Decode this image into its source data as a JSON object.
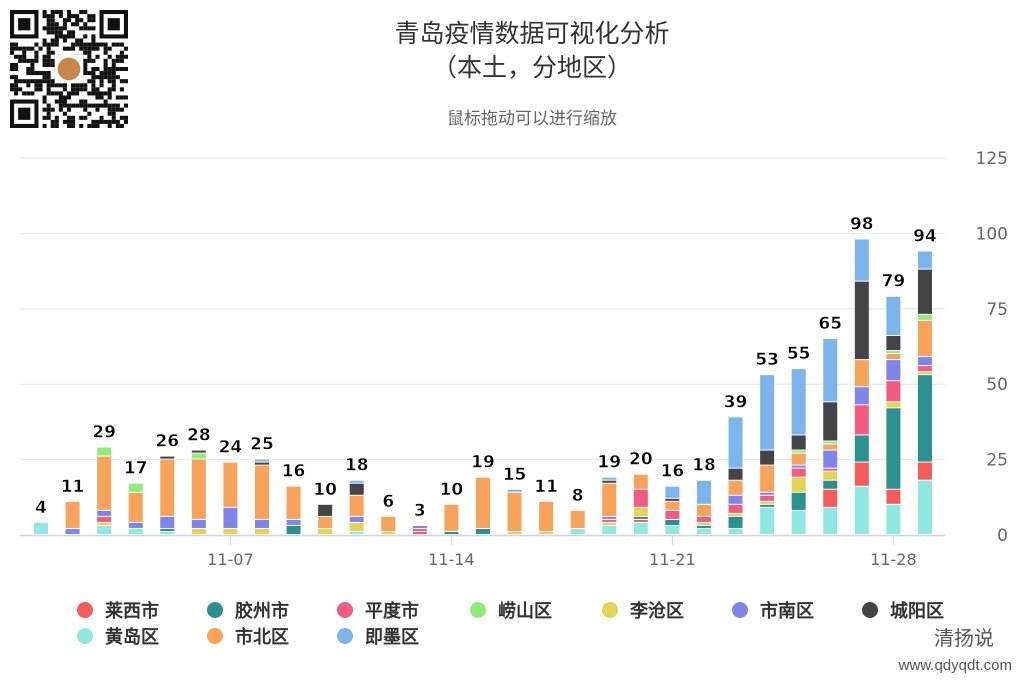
{
  "header": {
    "title_line1": "青岛疫情数据可视化分析",
    "title_line2": "（本土，分地区）",
    "subtitle": "鼠标拖动可以进行缩放"
  },
  "watermark": {
    "name": "清扬说",
    "url": "www.qdyqdt.com"
  },
  "qr_code": {
    "icon": "qr-code-icon"
  },
  "chart_data": {
    "type": "bar",
    "stacked": true,
    "categories": [
      "11-01",
      "11-02",
      "11-03",
      "11-04",
      "11-05",
      "11-06",
      "11-07",
      "11-08",
      "11-09",
      "11-10",
      "11-11",
      "11-12",
      "11-13",
      "11-14",
      "11-15",
      "11-16",
      "11-17",
      "11-18",
      "11-19",
      "11-20",
      "11-21",
      "11-22",
      "11-23",
      "11-24",
      "11-25",
      "11-26",
      "11-27",
      "11-28",
      "11-29"
    ],
    "x_tick_labels": [
      "11-07",
      "11-14",
      "11-21",
      "11-28"
    ],
    "y_ticks": [
      0,
      25,
      50,
      75,
      100,
      125
    ],
    "ylim": [
      0,
      125
    ],
    "y_axis_side": "right",
    "grid": true,
    "legend_position": "bottom",
    "totals": [
      4,
      11,
      29,
      17,
      26,
      28,
      24,
      25,
      16,
      10,
      18,
      6,
      3,
      10,
      19,
      15,
      11,
      8,
      19,
      20,
      16,
      18,
      39,
      53,
      55,
      65,
      98,
      79,
      94
    ],
    "series": [
      {
        "name": "黄岛区",
        "color": "#91e8e1",
        "values": [
          4,
          0,
          3,
          2,
          1,
          0,
          0,
          0,
          0,
          0,
          1,
          0,
          0,
          0,
          0,
          0,
          0,
          2,
          3,
          4,
          3,
          2,
          2,
          9,
          8,
          9,
          16,
          10,
          18
        ]
      },
      {
        "name": "莱西市",
        "color": "#f45b5b",
        "values": [
          0,
          0,
          0,
          0,
          0,
          0,
          0,
          0,
          0,
          0,
          0,
          0,
          1,
          0,
          0,
          0,
          0,
          0,
          0,
          1,
          0,
          0,
          0,
          0,
          0,
          6,
          8,
          5,
          6
        ]
      },
      {
        "name": "胶州市",
        "color": "#2b908f",
        "values": [
          0,
          0,
          0,
          0,
          1,
          0,
          0,
          0,
          3,
          0,
          0,
          0,
          0,
          1,
          2,
          0,
          0,
          0,
          0,
          1,
          2,
          1,
          4,
          1,
          6,
          3,
          9,
          27,
          29
        ]
      },
      {
        "name": "李沧区",
        "color": "#e4d354",
        "values": [
          0,
          0,
          1,
          0,
          0,
          2,
          2,
          2,
          0,
          2,
          3,
          1,
          0,
          0,
          0,
          1,
          1,
          0,
          1,
          3,
          0,
          1,
          1,
          1,
          5,
          3,
          0,
          2,
          1
        ]
      },
      {
        "name": "平度市",
        "color": "#f15c80",
        "values": [
          0,
          0,
          2,
          0,
          0,
          0,
          0,
          0,
          0,
          0,
          0,
          0,
          1,
          0,
          0,
          0,
          0,
          0,
          1,
          6,
          3,
          2,
          3,
          2,
          3,
          1,
          10,
          7,
          2
        ]
      },
      {
        "name": "市南区",
        "color": "#8085e9",
        "values": [
          0,
          2,
          2,
          2,
          4,
          3,
          7,
          3,
          2,
          0,
          2,
          0,
          1,
          0,
          0,
          0,
          0,
          0,
          1,
          0,
          0,
          0,
          3,
          1,
          1,
          6,
          6,
          7,
          3
        ]
      },
      {
        "name": "市北区",
        "color": "#f7a35c",
        "values": [
          0,
          9,
          18,
          10,
          19,
          20,
          15,
          18,
          11,
          4,
          7,
          5,
          0,
          9,
          17,
          13,
          10,
          6,
          11,
          5,
          3,
          4,
          5,
          9,
          4,
          2,
          9,
          2,
          12
        ]
      },
      {
        "name": "崂山区",
        "color": "#90ed7d",
        "values": [
          0,
          0,
          3,
          3,
          0,
          2,
          0,
          0,
          0,
          0,
          0,
          0,
          0,
          0,
          0,
          0,
          0,
          0,
          0,
          0,
          0,
          0,
          0,
          0,
          1,
          1,
          0,
          1,
          2
        ]
      },
      {
        "name": "城阳区",
        "color": "#434348",
        "values": [
          0,
          0,
          0,
          0,
          1,
          1,
          0,
          1,
          0,
          4,
          4,
          0,
          0,
          0,
          0,
          0,
          0,
          0,
          1,
          0,
          1,
          0,
          4,
          5,
          5,
          13,
          26,
          5,
          15
        ]
      },
      {
        "name": "即墨区",
        "color": "#7cb5ec",
        "values": [
          0,
          0,
          0,
          0,
          0,
          0,
          0,
          1,
          0,
          0,
          1,
          0,
          0,
          0,
          0,
          1,
          0,
          0,
          1,
          0,
          4,
          8,
          17,
          25,
          22,
          21,
          14,
          13,
          6
        ]
      }
    ],
    "legend_order": [
      "莱西市",
      "胶州市",
      "平度市",
      "崂山区",
      "李沧区",
      "市南区",
      "城阳区",
      "黄岛区",
      "市北区",
      "即墨区"
    ]
  }
}
